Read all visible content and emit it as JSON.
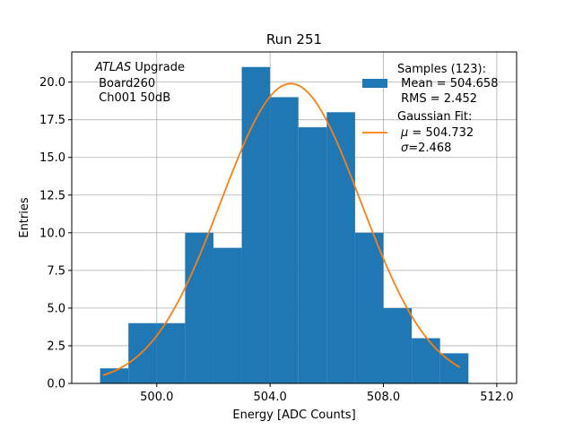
{
  "chart_data": {
    "type": "bar",
    "title": "Run 251",
    "xlabel": "Energy [ADC Counts]",
    "ylabel": "Entries",
    "xlim": [
      497,
      512.7
    ],
    "ylim": [
      0,
      22
    ],
    "xticks": [
      500,
      504,
      508,
      512
    ],
    "xtick_labels": [
      "500.0",
      "504.0",
      "508.0",
      "512.0"
    ],
    "yticks": [
      0,
      2.5,
      5,
      7.5,
      10,
      12.5,
      15,
      17.5,
      20
    ],
    "ytick_labels": [
      "0.0",
      "2.5",
      "5.0",
      "7.5",
      "10.0",
      "12.5",
      "15.0",
      "17.5",
      "20.0"
    ],
    "grid": true,
    "bin_edges": [
      498,
      499,
      500,
      501,
      502,
      503,
      504,
      505,
      506,
      507,
      508,
      509,
      510,
      511
    ],
    "counts": [
      1,
      4,
      4,
      10,
      9,
      21,
      19,
      17,
      18,
      10,
      5,
      3,
      2
    ],
    "bar_color": "#1f77b4",
    "fit": {
      "name": "Gaussian Fit",
      "mu": 504.732,
      "sigma": 2.468,
      "amplitude": 19.9,
      "x_range": [
        498.1,
        510.7
      ],
      "color": "#ff7f0e"
    },
    "annotation": {
      "line1_italic": "ATLAS",
      "line1_rest": " Upgrade",
      "line2": " Board260",
      "line3": " Ch001 50dB"
    },
    "legend": {
      "placement": "top-right",
      "samples_line1": "Samples (123):",
      "samples_line2": " Mean = 504.658",
      "samples_line3": " RMS = 2.452",
      "fit_line1": "Gaussian Fit:",
      "fit_line2_symbol": "μ",
      "fit_line2_rest": " = 504.732",
      "fit_line3_symbol": "σ",
      "fit_line3_rest": "=2.468"
    }
  }
}
